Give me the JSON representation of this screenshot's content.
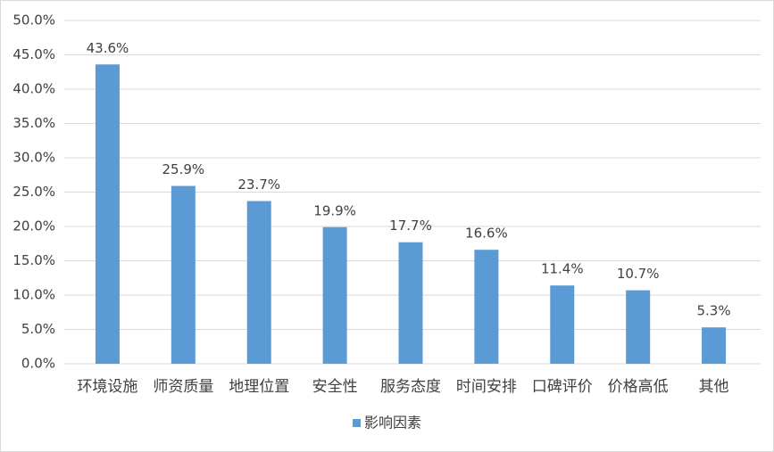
{
  "chart_data": {
    "type": "bar",
    "categories": [
      "环境设施",
      "师资质量",
      "地理位置",
      "安全性",
      "服务态度",
      "时间安排",
      "口碑评价",
      "价格高低",
      "其他"
    ],
    "series": [
      {
        "name": "影响因素",
        "color": "#5b9bd5",
        "values": [
          43.6,
          25.9,
          23.7,
          19.9,
          17.7,
          16.6,
          11.4,
          10.7,
          5.3
        ],
        "value_labels": [
          "43.6%",
          "25.9%",
          "23.7%",
          "19.9%",
          "17.7%",
          "16.6%",
          "11.4%",
          "10.7%",
          "5.3%"
        ]
      }
    ],
    "ylim": [
      0,
      50
    ],
    "yticks": [
      {
        "value": 0,
        "label": "0.0%"
      },
      {
        "value": 5,
        "label": "5.0%"
      },
      {
        "value": 10,
        "label": "10.0%"
      },
      {
        "value": 15,
        "label": "15.0%"
      },
      {
        "value": 20,
        "label": "20.0%"
      },
      {
        "value": 25,
        "label": "25.0%"
      },
      {
        "value": 30,
        "label": "30.0%"
      },
      {
        "value": 35,
        "label": "35.0%"
      },
      {
        "value": 40,
        "label": "40.0%"
      },
      {
        "value": 45,
        "label": "45.0%"
      },
      {
        "value": 50,
        "label": "50.0%"
      }
    ],
    "grid": true,
    "legend": "bottom"
  }
}
